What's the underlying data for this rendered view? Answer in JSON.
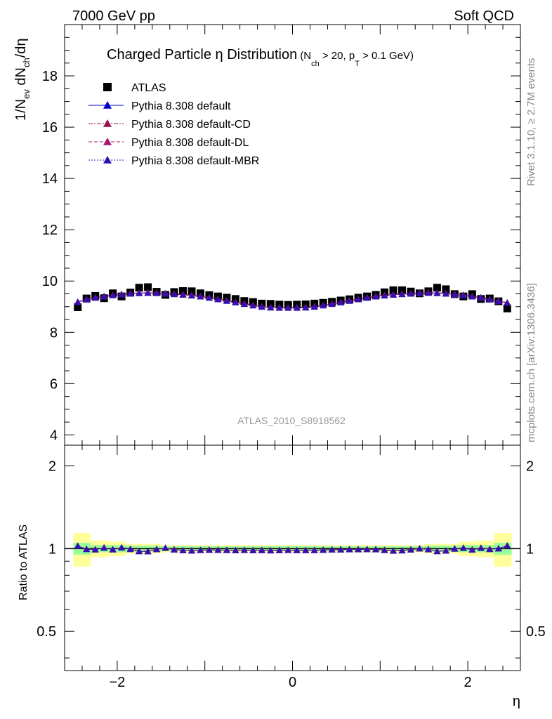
{
  "header": {
    "left": "7000 GeV pp",
    "right": "Soft QCD"
  },
  "side_labels": {
    "rivet": "Rivet 3.1.10, ≥ 2.7M events",
    "mcplots": "mcplots.cern.ch [arXiv:1306.3436]"
  },
  "analysis_label": "ATLAS_2010_S8918562",
  "title": {
    "main": "Charged Particle η Distribution",
    "cond_a": "(N",
    "cond_a_sub": "ch",
    "cond_b": " > 20, p",
    "cond_b_sub": "T",
    "cond_c": " > 0.1 GeV)"
  },
  "ylabel_parts": {
    "a": "1/N",
    "a_sub": "ev",
    "b": " dN",
    "b_sub": "ch",
    "c": "/dη"
  },
  "xlabel": "η",
  "ratio_ylabel": "Ratio to ATLAS",
  "colors": {
    "atlas": "#000000",
    "default": "#0000cc",
    "cd": "#99134c",
    "dl": "#a8176e",
    "mbr": "#3310b0",
    "band_inner": "#99ff99",
    "band_outer": "#ffff99"
  },
  "chart_data": [
    {
      "type": "scatter",
      "panel": "main",
      "xlim": [
        -2.6,
        2.6
      ],
      "ylim": [
        3.6,
        20.0
      ],
      "yticks": [
        4,
        6,
        8,
        10,
        12,
        14,
        16,
        18
      ],
      "xticks": [
        -2,
        0,
        2
      ],
      "x": [
        -2.45,
        -2.35,
        -2.25,
        -2.15,
        -2.05,
        -1.95,
        -1.85,
        -1.75,
        -1.65,
        -1.55,
        -1.45,
        -1.35,
        -1.25,
        -1.15,
        -1.05,
        -0.95,
        -0.85,
        -0.75,
        -0.65,
        -0.55,
        -0.45,
        -0.35,
        -0.25,
        -0.15,
        -0.05,
        0.05,
        0.15,
        0.25,
        0.35,
        0.45,
        0.55,
        0.65,
        0.75,
        0.85,
        0.95,
        1.05,
        1.15,
        1.25,
        1.35,
        1.45,
        1.55,
        1.65,
        1.75,
        1.85,
        1.95,
        2.05,
        2.15,
        2.25,
        2.35,
        2.45
      ],
      "series": [
        {
          "name": "ATLAS",
          "marker": "square",
          "values": [
            8.98,
            9.32,
            9.42,
            9.33,
            9.52,
            9.4,
            9.55,
            9.74,
            9.76,
            9.58,
            9.46,
            9.57,
            9.61,
            9.6,
            9.52,
            9.45,
            9.4,
            9.35,
            9.3,
            9.22,
            9.18,
            9.12,
            9.11,
            9.08,
            9.07,
            9.08,
            9.09,
            9.12,
            9.15,
            9.19,
            9.24,
            9.29,
            9.35,
            9.4,
            9.46,
            9.56,
            9.64,
            9.64,
            9.59,
            9.52,
            9.6,
            9.74,
            9.68,
            9.49,
            9.4,
            9.49,
            9.3,
            9.32,
            9.21,
            8.93
          ]
        },
        {
          "name": "Pythia 8.308 default",
          "marker": "triangle",
          "line": "solid",
          "values": [
            9.18,
            9.28,
            9.35,
            9.4,
            9.45,
            9.48,
            9.51,
            9.53,
            9.54,
            9.53,
            9.51,
            9.49,
            9.47,
            9.44,
            9.4,
            9.35,
            9.29,
            9.23,
            9.17,
            9.11,
            9.05,
            9.0,
            8.97,
            8.96,
            8.96,
            8.96,
            8.97,
            9.0,
            9.05,
            9.11,
            9.17,
            9.23,
            9.29,
            9.35,
            9.4,
            9.44,
            9.47,
            9.49,
            9.51,
            9.53,
            9.54,
            9.53,
            9.51,
            9.48,
            9.45,
            9.4,
            9.35,
            9.28,
            9.22,
            9.15
          ]
        },
        {
          "name": "Pythia 8.308 default-CD",
          "marker": "triangle",
          "line": "dashdot",
          "values": [
            9.19,
            9.29,
            9.36,
            9.41,
            9.46,
            9.49,
            9.52,
            9.54,
            9.55,
            9.54,
            9.52,
            9.5,
            9.48,
            9.45,
            9.41,
            9.36,
            9.3,
            9.24,
            9.18,
            9.12,
            9.06,
            9.01,
            8.98,
            8.97,
            8.97,
            8.97,
            8.98,
            9.01,
            9.06,
            9.12,
            9.18,
            9.24,
            9.3,
            9.36,
            9.41,
            9.45,
            9.48,
            9.5,
            9.52,
            9.54,
            9.55,
            9.54,
            9.52,
            9.49,
            9.46,
            9.41,
            9.36,
            9.29,
            9.23,
            9.16
          ]
        },
        {
          "name": "Pythia 8.308 default-DL",
          "marker": "triangle",
          "line": "dashed",
          "values": [
            9.18,
            9.28,
            9.35,
            9.4,
            9.45,
            9.48,
            9.51,
            9.53,
            9.54,
            9.53,
            9.51,
            9.49,
            9.47,
            9.44,
            9.4,
            9.35,
            9.29,
            9.23,
            9.17,
            9.11,
            9.05,
            9.0,
            8.97,
            8.96,
            8.96,
            8.96,
            8.97,
            9.0,
            9.05,
            9.11,
            9.17,
            9.23,
            9.29,
            9.35,
            9.4,
            9.44,
            9.47,
            9.49,
            9.51,
            9.53,
            9.54,
            9.53,
            9.51,
            9.48,
            9.45,
            9.4,
            9.35,
            9.28,
            9.22,
            9.15
          ]
        },
        {
          "name": "Pythia 8.308 default-MBR",
          "marker": "triangle",
          "line": "dotted",
          "values": [
            9.17,
            9.27,
            9.34,
            9.39,
            9.44,
            9.47,
            9.5,
            9.52,
            9.53,
            9.52,
            9.5,
            9.48,
            9.46,
            9.43,
            9.39,
            9.34,
            9.28,
            9.22,
            9.16,
            9.1,
            9.04,
            8.99,
            8.96,
            8.95,
            8.95,
            8.95,
            8.96,
            8.99,
            9.04,
            9.1,
            9.16,
            9.22,
            9.28,
            9.34,
            9.39,
            9.43,
            9.46,
            9.48,
            9.5,
            9.52,
            9.53,
            9.52,
            9.5,
            9.47,
            9.44,
            9.39,
            9.34,
            9.27,
            9.21,
            9.14
          ]
        }
      ]
    },
    {
      "type": "scatter",
      "panel": "ratio",
      "scale": "log",
      "ylim": [
        0.36,
        2.38
      ],
      "yticks": [
        0.5,
        1,
        2
      ],
      "xlim": [
        -2.6,
        2.6
      ],
      "x": [
        -2.45,
        -2.35,
        -2.25,
        -2.15,
        -2.05,
        -1.95,
        -1.85,
        -1.75,
        -1.65,
        -1.55,
        -1.45,
        -1.35,
        -1.25,
        -1.15,
        -1.05,
        -0.95,
        -0.85,
        -0.75,
        -0.65,
        -0.55,
        -0.45,
        -0.35,
        -0.25,
        -0.15,
        -0.05,
        0.05,
        0.15,
        0.25,
        0.35,
        0.45,
        0.55,
        0.65,
        0.75,
        0.85,
        0.95,
        1.05,
        1.15,
        1.25,
        1.35,
        1.45,
        1.55,
        1.65,
        1.75,
        1.85,
        1.95,
        2.05,
        2.15,
        2.25,
        2.35,
        2.45
      ],
      "band_inner": [
        0.05,
        0.05,
        0.03,
        0.03,
        0.03,
        0.03,
        0.025,
        0.025,
        0.025,
        0.025,
        0.02,
        0.02,
        0.02,
        0.02,
        0.02,
        0.02,
        0.02,
        0.02,
        0.02,
        0.02,
        0.02,
        0.02,
        0.02,
        0.02,
        0.02,
        0.02,
        0.02,
        0.02,
        0.02,
        0.02,
        0.02,
        0.02,
        0.02,
        0.02,
        0.02,
        0.02,
        0.02,
        0.02,
        0.02,
        0.02,
        0.025,
        0.025,
        0.025,
        0.025,
        0.03,
        0.03,
        0.03,
        0.03,
        0.05,
        0.05
      ],
      "band_outer": [
        0.14,
        0.14,
        0.07,
        0.07,
        0.06,
        0.06,
        0.04,
        0.04,
        0.04,
        0.04,
        0.03,
        0.03,
        0.03,
        0.03,
        0.03,
        0.03,
        0.03,
        0.03,
        0.03,
        0.03,
        0.03,
        0.03,
        0.03,
        0.03,
        0.03,
        0.03,
        0.03,
        0.03,
        0.03,
        0.03,
        0.03,
        0.03,
        0.03,
        0.03,
        0.03,
        0.03,
        0.03,
        0.03,
        0.03,
        0.03,
        0.04,
        0.04,
        0.04,
        0.04,
        0.06,
        0.06,
        0.07,
        0.07,
        0.14,
        0.14
      ]
    }
  ]
}
